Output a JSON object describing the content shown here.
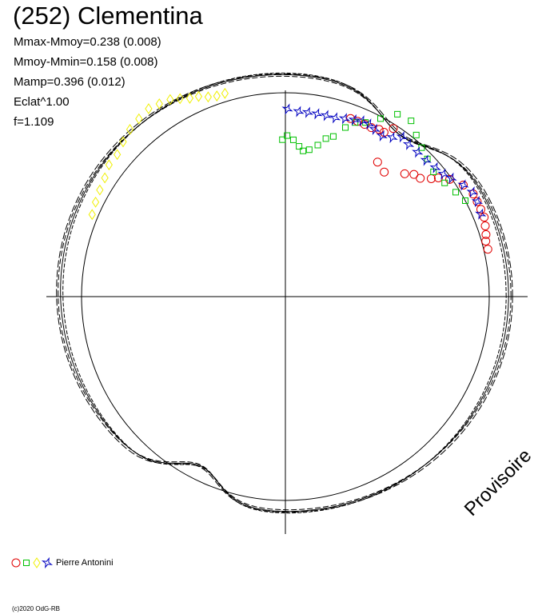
{
  "header": {
    "title": "(252) Clementina",
    "stats": [
      "Mmax-Mmoy=0.238 (0.008)",
      "Mmoy-Mmin=0.158 (0.008)",
      "Mamp=0.396 (0.012)",
      "Eclat^1.00",
      "f=1.109"
    ]
  },
  "watermark": "Provisoire",
  "legend": {
    "label": "Pierre Antonini",
    "symbols": [
      "circle",
      "square",
      "diamond",
      "star"
    ]
  },
  "copyright": "(c)2020 OdG-RB",
  "colors": {
    "red": "#e00000",
    "green": "#00c000",
    "yellow": "#f0f000",
    "blue": "#0000c0",
    "axes": "#000000"
  },
  "chart_data": {
    "type": "scatter",
    "coordinate_system": "polar",
    "angle_unit": "rotation_phase",
    "curve_note": "rotational lightcurve plotted in polar form; radius relative magnitude, reference circle = mean",
    "series": [
      {
        "name": "",
        "symbol": "circle",
        "color": "red",
        "points": [
          [
            0.23,
            1.02
          ],
          [
            0.27,
            1.02
          ],
          [
            0.3,
            1.03
          ],
          [
            0.34,
            1.04
          ],
          [
            0.38,
            1.05
          ],
          [
            0.42,
            1.05
          ],
          [
            0.46,
            1.05
          ],
          [
            0.5,
            1.05
          ],
          [
            0.56,
            1.03
          ],
          [
            0.62,
            0.99
          ],
          [
            0.66,
            0.95
          ],
          [
            0.68,
            0.92
          ],
          [
            0.72,
            0.88
          ],
          [
            0.76,
            0.87
          ],
          [
            0.8,
            0.84
          ],
          [
            0.9,
            0.78
          ],
          [
            0.97,
            0.8
          ],
          [
            1.0,
            0.98
          ],
          [
            1.03,
            0.94
          ],
          [
            1.06,
            0.94
          ],
          [
            1.1,
            0.93
          ],
          [
            1.14,
            0.93
          ],
          [
            1.18,
            0.93
          ],
          [
            1.22,
            0.93
          ]
        ]
      },
      {
        "name": "",
        "symbol": "square",
        "color": "green",
        "points": [
          [
            0.49,
            1.0
          ],
          [
            0.55,
            0.98
          ],
          [
            0.62,
            0.96
          ],
          [
            0.7,
            0.95
          ],
          [
            0.77,
            0.97
          ],
          [
            0.83,
            0.99
          ],
          [
            0.89,
            1.02
          ],
          [
            0.95,
            1.06
          ],
          [
            1.02,
            1.05
          ],
          [
            1.08,
            0.99
          ],
          [
            1.14,
            0.94
          ],
          [
            1.19,
            0.92
          ],
          [
            1.23,
            0.88
          ],
          [
            1.28,
            0.82
          ],
          [
            1.32,
            0.8
          ],
          [
            1.36,
            0.76
          ],
          [
            1.41,
            0.73
          ],
          [
            1.45,
            0.72
          ],
          [
            1.48,
            0.74
          ],
          [
            1.52,
            0.77
          ],
          [
            1.56,
            0.79
          ],
          [
            1.59,
            0.77
          ]
        ]
      },
      {
        "name": "",
        "symbol": "diamond",
        "color": "yellow",
        "points": [
          [
            1.86,
            1.04
          ],
          [
            1.9,
            1.04
          ],
          [
            1.94,
            1.05
          ],
          [
            1.98,
            1.07
          ],
          [
            2.02,
            1.08
          ],
          [
            2.06,
            1.1
          ],
          [
            2.1,
            1.12
          ],
          [
            2.15,
            1.13
          ],
          [
            2.2,
            1.14
          ],
          [
            2.26,
            1.13
          ],
          [
            2.32,
            1.12
          ],
          [
            2.38,
            1.1
          ],
          [
            2.44,
            1.08
          ],
          [
            2.5,
            1.08
          ],
          [
            2.56,
            1.06
          ],
          [
            2.62,
            1.05
          ],
          [
            2.68,
            1.04
          ],
          [
            2.74,
            1.03
          ]
        ]
      },
      {
        "name": "",
        "symbol": "star",
        "color": "blue",
        "points": [
          [
            0.4,
            1.04
          ],
          [
            0.46,
            1.05
          ],
          [
            0.51,
            1.05
          ],
          [
            0.56,
            1.03
          ],
          [
            0.62,
            1.0
          ],
          [
            0.66,
            0.98
          ],
          [
            0.71,
            0.97
          ],
          [
            0.77,
            0.96
          ],
          [
            0.83,
            0.96
          ],
          [
            0.89,
            0.96
          ],
          [
            0.94,
            0.97
          ],
          [
            0.98,
            0.94
          ],
          [
            1.03,
            0.92
          ],
          [
            1.08,
            0.93
          ],
          [
            1.12,
            0.94
          ],
          [
            1.16,
            0.94
          ],
          [
            1.2,
            0.93
          ],
          [
            1.25,
            0.92
          ],
          [
            1.3,
            0.91
          ],
          [
            1.35,
            0.91
          ],
          [
            1.4,
            0.91
          ],
          [
            1.45,
            0.91
          ],
          [
            1.5,
            0.91
          ],
          [
            1.56,
            0.92
          ]
        ]
      }
    ],
    "fit_curves": 4,
    "reference_circle_radius": 1.0
  }
}
